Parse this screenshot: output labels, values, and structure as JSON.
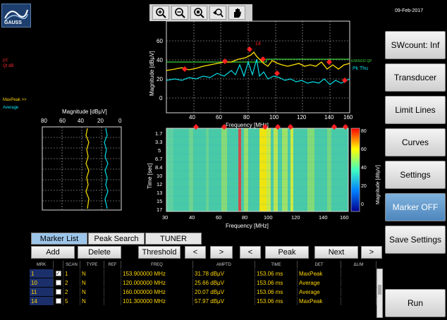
{
  "app": {
    "logo_text": "GAUSS",
    "date": "09-Feb-2017"
  },
  "left_labels": {
    "ref1": "PT",
    "ref2": "Qt dB",
    "maxpeak": "MaxPeak >>",
    "average": "Average"
  },
  "toolbar": {
    "icons": [
      "zoom-in-icon",
      "zoom-out-icon",
      "zoom-fit-icon",
      "zoom-reset-icon",
      "pan-hand-icon"
    ]
  },
  "spectrum": {
    "ylabel": "Magnitude [dBµV]",
    "xlabel": "Frequency [MHz]",
    "yticks": [
      "60",
      "40",
      "20",
      "0"
    ],
    "xticks": [
      "40",
      "60",
      "80",
      "100",
      "120",
      "140",
      "160"
    ],
    "limit_label": "EN55032 QP",
    "legend": "Pk Thu",
    "xlim": [
      30,
      160
    ],
    "ylim": [
      -10,
      75
    ]
  },
  "side_panel": {
    "ylabel": "Magnitude [dBµV]",
    "ticks": [
      "80",
      "60",
      "40",
      "20",
      "0"
    ]
  },
  "waterfall": {
    "ylabel": "Time [sec]",
    "xlabel": "Frequency [MHz]",
    "yticks": [
      "1.7",
      "3.3",
      "5",
      "6.7",
      "8.4",
      "10",
      "12",
      "13",
      "15",
      "17"
    ],
    "xticks": [
      "30",
      "40",
      "60",
      "80",
      "100",
      "120",
      "140",
      "160"
    ],
    "colorbar_label": "Magnitude [dBµV]",
    "colorbar_ticks": [
      "80",
      "60",
      "40",
      "20",
      "0"
    ]
  },
  "right_buttons": {
    "swcount": "SWcount: Inf",
    "transducer": "Transducer",
    "limit_lines": "Limit Lines",
    "curves": "Curves",
    "settings": "Settings",
    "marker": "Marker OFF",
    "save_settings": "Save Settings",
    "run": "Run"
  },
  "tabs": {
    "marker_list": "Marker List",
    "peak_search": "Peak Search",
    "tuner": "TUNER"
  },
  "controls": {
    "add": "Add",
    "delete": "Delete",
    "threshold": "Threshold",
    "lt1": "<",
    "gt1": ">",
    "lt2": "<",
    "peak": "Peak",
    "next": "Next",
    "gt2": ">"
  },
  "table": {
    "headers": [
      "MRK",
      "",
      "SCAN",
      "TYPE",
      "REF",
      "FREQ",
      "AMPTD",
      "TIME",
      "DET",
      "ΔLIM"
    ],
    "rows": [
      {
        "mrk": "1",
        "checked": "✓",
        "scan": "1",
        "type": "N",
        "ref": "",
        "freq": "153.900000 MHz",
        "amptd": "31.78 dBµV",
        "time": "153.06 ms",
        "det": "MaxPeak",
        "dlim": ""
      },
      {
        "mrk": "10",
        "checked": "",
        "scan": "2",
        "type": "N",
        "ref": "",
        "freq": "120.000000 MHz",
        "amptd": "25.66 dBµV",
        "time": "153.06 ms",
        "det": "Average",
        "dlim": ""
      },
      {
        "mrk": "11",
        "checked": "",
        "scan": "2",
        "type": "N",
        "ref": "",
        "freq": "160.000000 MHz",
        "amptd": "20.07 dBµV",
        "time": "153.06 ms",
        "det": "Average",
        "dlim": ""
      },
      {
        "mrk": "14",
        "checked": "",
        "scan": "5",
        "type": "N",
        "ref": "",
        "freq": "101.300000 MHz",
        "amptd": "57.97 dBµV",
        "time": "153.06 ms",
        "det": "MaxPeak",
        "dlim": ""
      }
    ]
  },
  "colors": {
    "maxpeak": "#ffe100",
    "average": "#00e0e8",
    "limit": "#3bd13b",
    "marker": "#ff2020",
    "grid": "#cfcfcf"
  }
}
